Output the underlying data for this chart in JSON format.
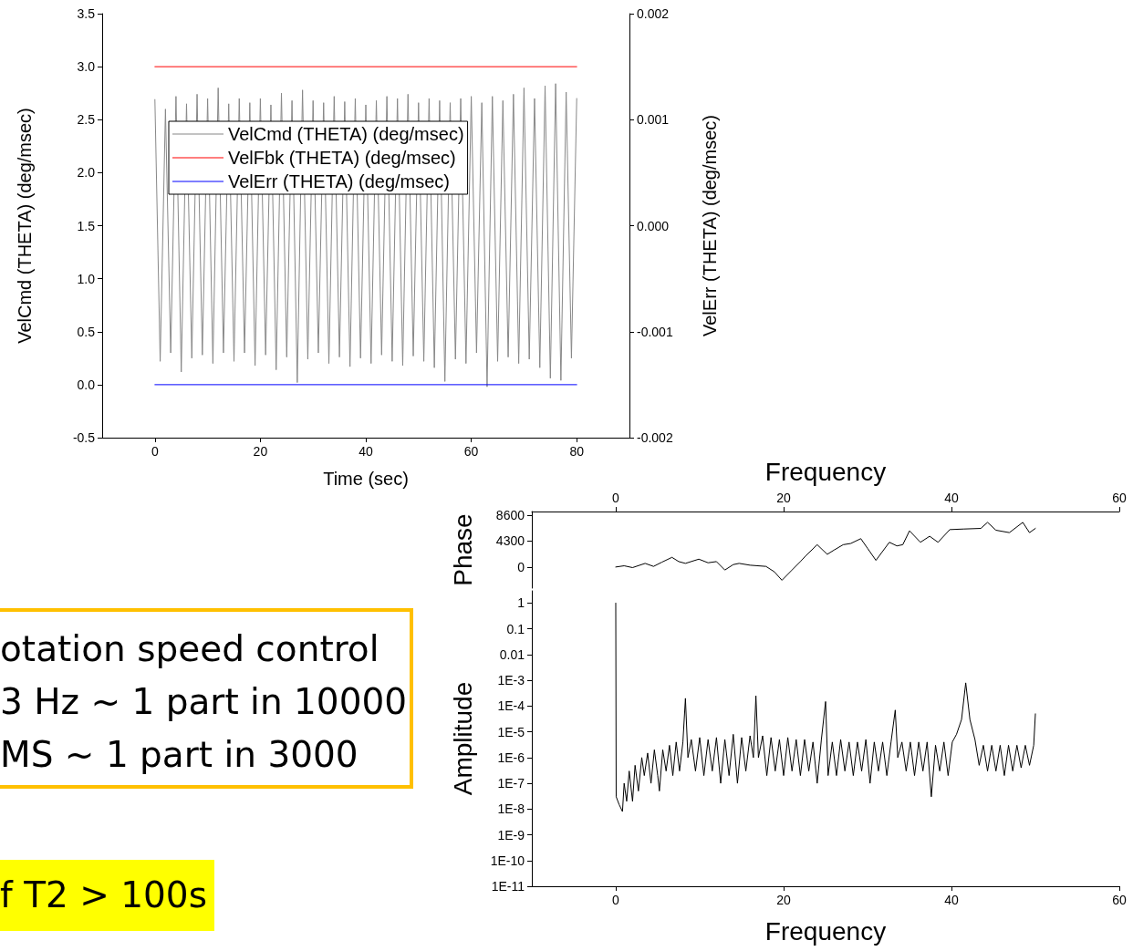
{
  "chart_data": [
    {
      "type": "line",
      "xlabel": "Time (sec)",
      "ylabel": "VelCmd (THETA) (deg/msec)",
      "y2label": "VelErr (THETA) (deg/msec)",
      "xlim": [
        -10,
        90
      ],
      "xticks": [
        0,
        20,
        40,
        60,
        80
      ],
      "ylim": [
        -0.5,
        3.5
      ],
      "yticks": [
        -0.5,
        {
          "value": 0,
          "label": "0.0"
        },
        0.5,
        {
          "value": 1,
          "label": "1.0"
        },
        1.5,
        {
          "value": 2,
          "label": "2.0"
        },
        2.5,
        {
          "value": 3,
          "label": "3.0"
        },
        3.5
      ],
      "y2lim": [
        -0.002,
        0.002
      ],
      "y2ticks": [
        -0.002,
        -0.001,
        {
          "value": 0,
          "label": "0.000"
        },
        0.001,
        0.002
      ],
      "legend": "top left",
      "marker": "none",
      "line_style": "solid",
      "series": [
        {
          "name": "VelCmd (THETA) (deg/msec)",
          "color": "#888888",
          "x": [
            0,
            1,
            2,
            3,
            4,
            5,
            6,
            7,
            8,
            9,
            10,
            11,
            12,
            13,
            14,
            15,
            16,
            17,
            18,
            19,
            20,
            21,
            22,
            23,
            24,
            25,
            26,
            27,
            28,
            29,
            30,
            31,
            32,
            33,
            34,
            35,
            36,
            37,
            38,
            39,
            40,
            41,
            42,
            43,
            44,
            45,
            46,
            47,
            48,
            49,
            50,
            51,
            52,
            53,
            54,
            55,
            56,
            57,
            58,
            59,
            60,
            61,
            62,
            63,
            64,
            65,
            66,
            67,
            68,
            69,
            70,
            71,
            72,
            73,
            74,
            75,
            76,
            77,
            78,
            79,
            80
          ],
          "values": [
            2.69,
            0.22,
            2.6,
            0.3,
            2.72,
            0.12,
            2.65,
            0.25,
            2.74,
            0.28,
            2.7,
            0.2,
            2.8,
            0.3,
            2.65,
            0.22,
            2.7,
            0.3,
            2.66,
            0.18,
            2.7,
            0.28,
            2.64,
            0.14,
            2.75,
            0.26,
            2.68,
            0.02,
            2.78,
            0.24,
            2.68,
            0.3,
            2.66,
            0.2,
            2.72,
            0.26,
            2.67,
            0.17,
            2.7,
            0.25,
            2.64,
            0.2,
            2.68,
            0.28,
            2.72,
            0.22,
            2.7,
            0.18,
            2.74,
            0.27,
            2.66,
            0.22,
            2.7,
            0.16,
            2.68,
            0.03,
            2.66,
            0.24,
            2.7,
            0.2,
            2.72,
            0.3,
            2.66,
            -0.02,
            2.72,
            0.22,
            2.68,
            0.26,
            2.74,
            0.2,
            2.8,
            0.24,
            2.7,
            0.16,
            2.82,
            0.06,
            2.84,
            0.04,
            2.76,
            0.25,
            2.7
          ]
        },
        {
          "name": "VelFbk (THETA) (deg/msec)",
          "color": "#ff0000",
          "x": [
            0,
            80
          ],
          "values": [
            3.0,
            3.0
          ]
        },
        {
          "name": "VelErr (THETA) (deg/msec)",
          "color": "#0000ff",
          "axis": "y2",
          "x": [
            0,
            80
          ],
          "values": [
            -0.0015,
            -0.0015
          ]
        }
      ]
    },
    {
      "type": "line",
      "xlabel": "Frequency",
      "ylabel": "Phase",
      "xlim": [
        -10,
        60
      ],
      "xticks": [
        0,
        20,
        40,
        60
      ],
      "ylim": [
        -3500,
        9200
      ],
      "yticks": [
        0,
        4300,
        8600
      ],
      "marker": "none",
      "line_style": "solid",
      "series": [
        {
          "color": "#000000",
          "x": [
            0,
            1,
            2,
            3.5,
            4.5,
            5.5,
            6.7,
            7.5,
            8.3,
            9.9,
            11,
            12,
            13,
            14,
            14.7,
            16,
            17.9,
            18.9,
            19.8,
            21,
            22,
            22.6,
            24,
            25.2,
            26,
            27.1,
            28,
            29.2,
            30,
            31,
            32.6,
            33.5,
            34.2,
            35,
            36.3,
            37.4,
            38.4,
            39.8,
            41.5,
            43.5,
            44.3,
            45.3,
            46.9,
            48.5,
            49.3,
            50
          ],
          "values": [
            0,
            200,
            -100,
            600,
            100,
            800,
            1600,
            900,
            600,
            1300,
            700,
            900,
            -500,
            400,
            600,
            300,
            100,
            -800,
            -2200,
            -500,
            900,
            1800,
            3700,
            2100,
            2800,
            3700,
            3900,
            4700,
            3100,
            1100,
            4100,
            3500,
            3700,
            6000,
            4100,
            5100,
            4100,
            6200,
            6300,
            6400,
            7400,
            6100,
            5700,
            7400,
            5700,
            6400
          ]
        }
      ]
    },
    {
      "type": "line",
      "xlabel": "Frequency",
      "ylabel": "Amplitude",
      "xlim": [
        -10,
        60
      ],
      "xticks": [
        0,
        20,
        40,
        60
      ],
      "ylim": [
        1e-11,
        3
      ],
      "log": "y",
      "yticks": [
        {
          "value": 1e-11,
          "label": "1E-11"
        },
        {
          "value": 1e-10,
          "label": "1E-10"
        },
        {
          "value": 1e-09,
          "label": "1E-9"
        },
        {
          "value": 1e-08,
          "label": "1E-8"
        },
        {
          "value": 1e-07,
          "label": "1E-7"
        },
        {
          "value": 1e-06,
          "label": "1E-6"
        },
        {
          "value": 1e-05,
          "label": "1E-5"
        },
        {
          "value": 0.0001,
          "label": "1E-4"
        },
        {
          "value": 0.001,
          "label": "1E-3"
        },
        0.01,
        0.1,
        1
      ],
      "marker": "none",
      "line_style": "solid",
      "series": [
        {
          "color": "#000000",
          "x": [
            0,
            0.05,
            0.4,
            0.8,
            1.0,
            1.3,
            1.6,
            2.0,
            2.3,
            2.7,
            3.1,
            3.4,
            3.8,
            4.2,
            4.6,
            5.0,
            5.2,
            5.6,
            6.0,
            6.4,
            6.8,
            7.2,
            7.6,
            8.0,
            8.3,
            8.6,
            9.0,
            9.5,
            10,
            10.5,
            11,
            11.5,
            12,
            12.5,
            13,
            13.5,
            14,
            14.5,
            15,
            15.5,
            16,
            16.4,
            16.7,
            17,
            17.5,
            18,
            18.5,
            19,
            19.5,
            20,
            20.5,
            21,
            21.5,
            22,
            22.5,
            23,
            23.5,
            24,
            24.5,
            25,
            25.3,
            25.8,
            26.3,
            26.8,
            27.3,
            27.8,
            28.3,
            28.8,
            29.3,
            29.8,
            30.3,
            30.8,
            31.3,
            31.8,
            32.3,
            32.8,
            33.3,
            33.6,
            34.1,
            34.6,
            35.1,
            35.6,
            36.1,
            36.6,
            37.1,
            37.6,
            38.1,
            38.6,
            39.1,
            39.6,
            40.1,
            40.6,
            41.2,
            41.7,
            42.2,
            42.8,
            43.3,
            43.8,
            44.3,
            44.8,
            45.3,
            45.8,
            46.3,
            46.8,
            47.3,
            47.8,
            48.3,
            48.8,
            49.3,
            49.8,
            50
          ],
          "values": [
            1,
            3e-08,
            1.5e-08,
            8e-09,
            1e-07,
            2e-08,
            3e-07,
            2e-08,
            5e-07,
            5e-08,
            1e-06,
            2e-07,
            1.5e-06,
            1e-07,
            2e-06,
            2e-07,
            5e-08,
            2e-06,
            3e-07,
            3e-06,
            2e-07,
            4e-06,
            3e-07,
            4e-06,
            0.0002,
            1e-06,
            5e-06,
            3e-07,
            6e-06,
            2e-07,
            5e-06,
            3e-07,
            6e-06,
            1e-07,
            5e-06,
            2e-07,
            8e-06,
            1e-07,
            6e-06,
            3e-07,
            7e-06,
            1e-06,
            0.00025,
            1e-06,
            7e-06,
            2e-07,
            6e-06,
            3e-07,
            5e-06,
            2e-07,
            6e-06,
            3e-07,
            5e-06,
            2e-07,
            5e-06,
            3e-07,
            4e-06,
            1e-07,
            5e-06,
            0.00015,
            2e-07,
            4e-06,
            2e-07,
            5e-06,
            3e-07,
            4e-06,
            2e-07,
            4e-06,
            3e-07,
            5e-06,
            1e-07,
            4e-06,
            3e-07,
            4e-06,
            2e-07,
            4e-06,
            7e-05,
            1e-06,
            4e-06,
            3e-07,
            4e-06,
            2e-07,
            4e-06,
            3e-07,
            4e-06,
            3e-08,
            3e-06,
            3e-07,
            4e-06,
            2e-07,
            4e-06,
            8e-06,
            3e-05,
            0.0008,
            3e-05,
            5e-06,
            5e-07,
            3e-06,
            3e-07,
            3e-06,
            3e-07,
            3e-06,
            2e-07,
            3e-06,
            3e-07,
            3e-06,
            4e-07,
            3e-06,
            5e-07,
            3e-06,
            5e-05
          ]
        }
      ]
    },
    {
      "type": "other",
      "annotations": [
        "otation speed control",
        "3 Hz ~ 1 part in 10000",
        "MS ~ 1 part in 3000"
      ]
    },
    {
      "type": "other",
      "annotations": [
        "f T2 > 100s"
      ]
    }
  ]
}
